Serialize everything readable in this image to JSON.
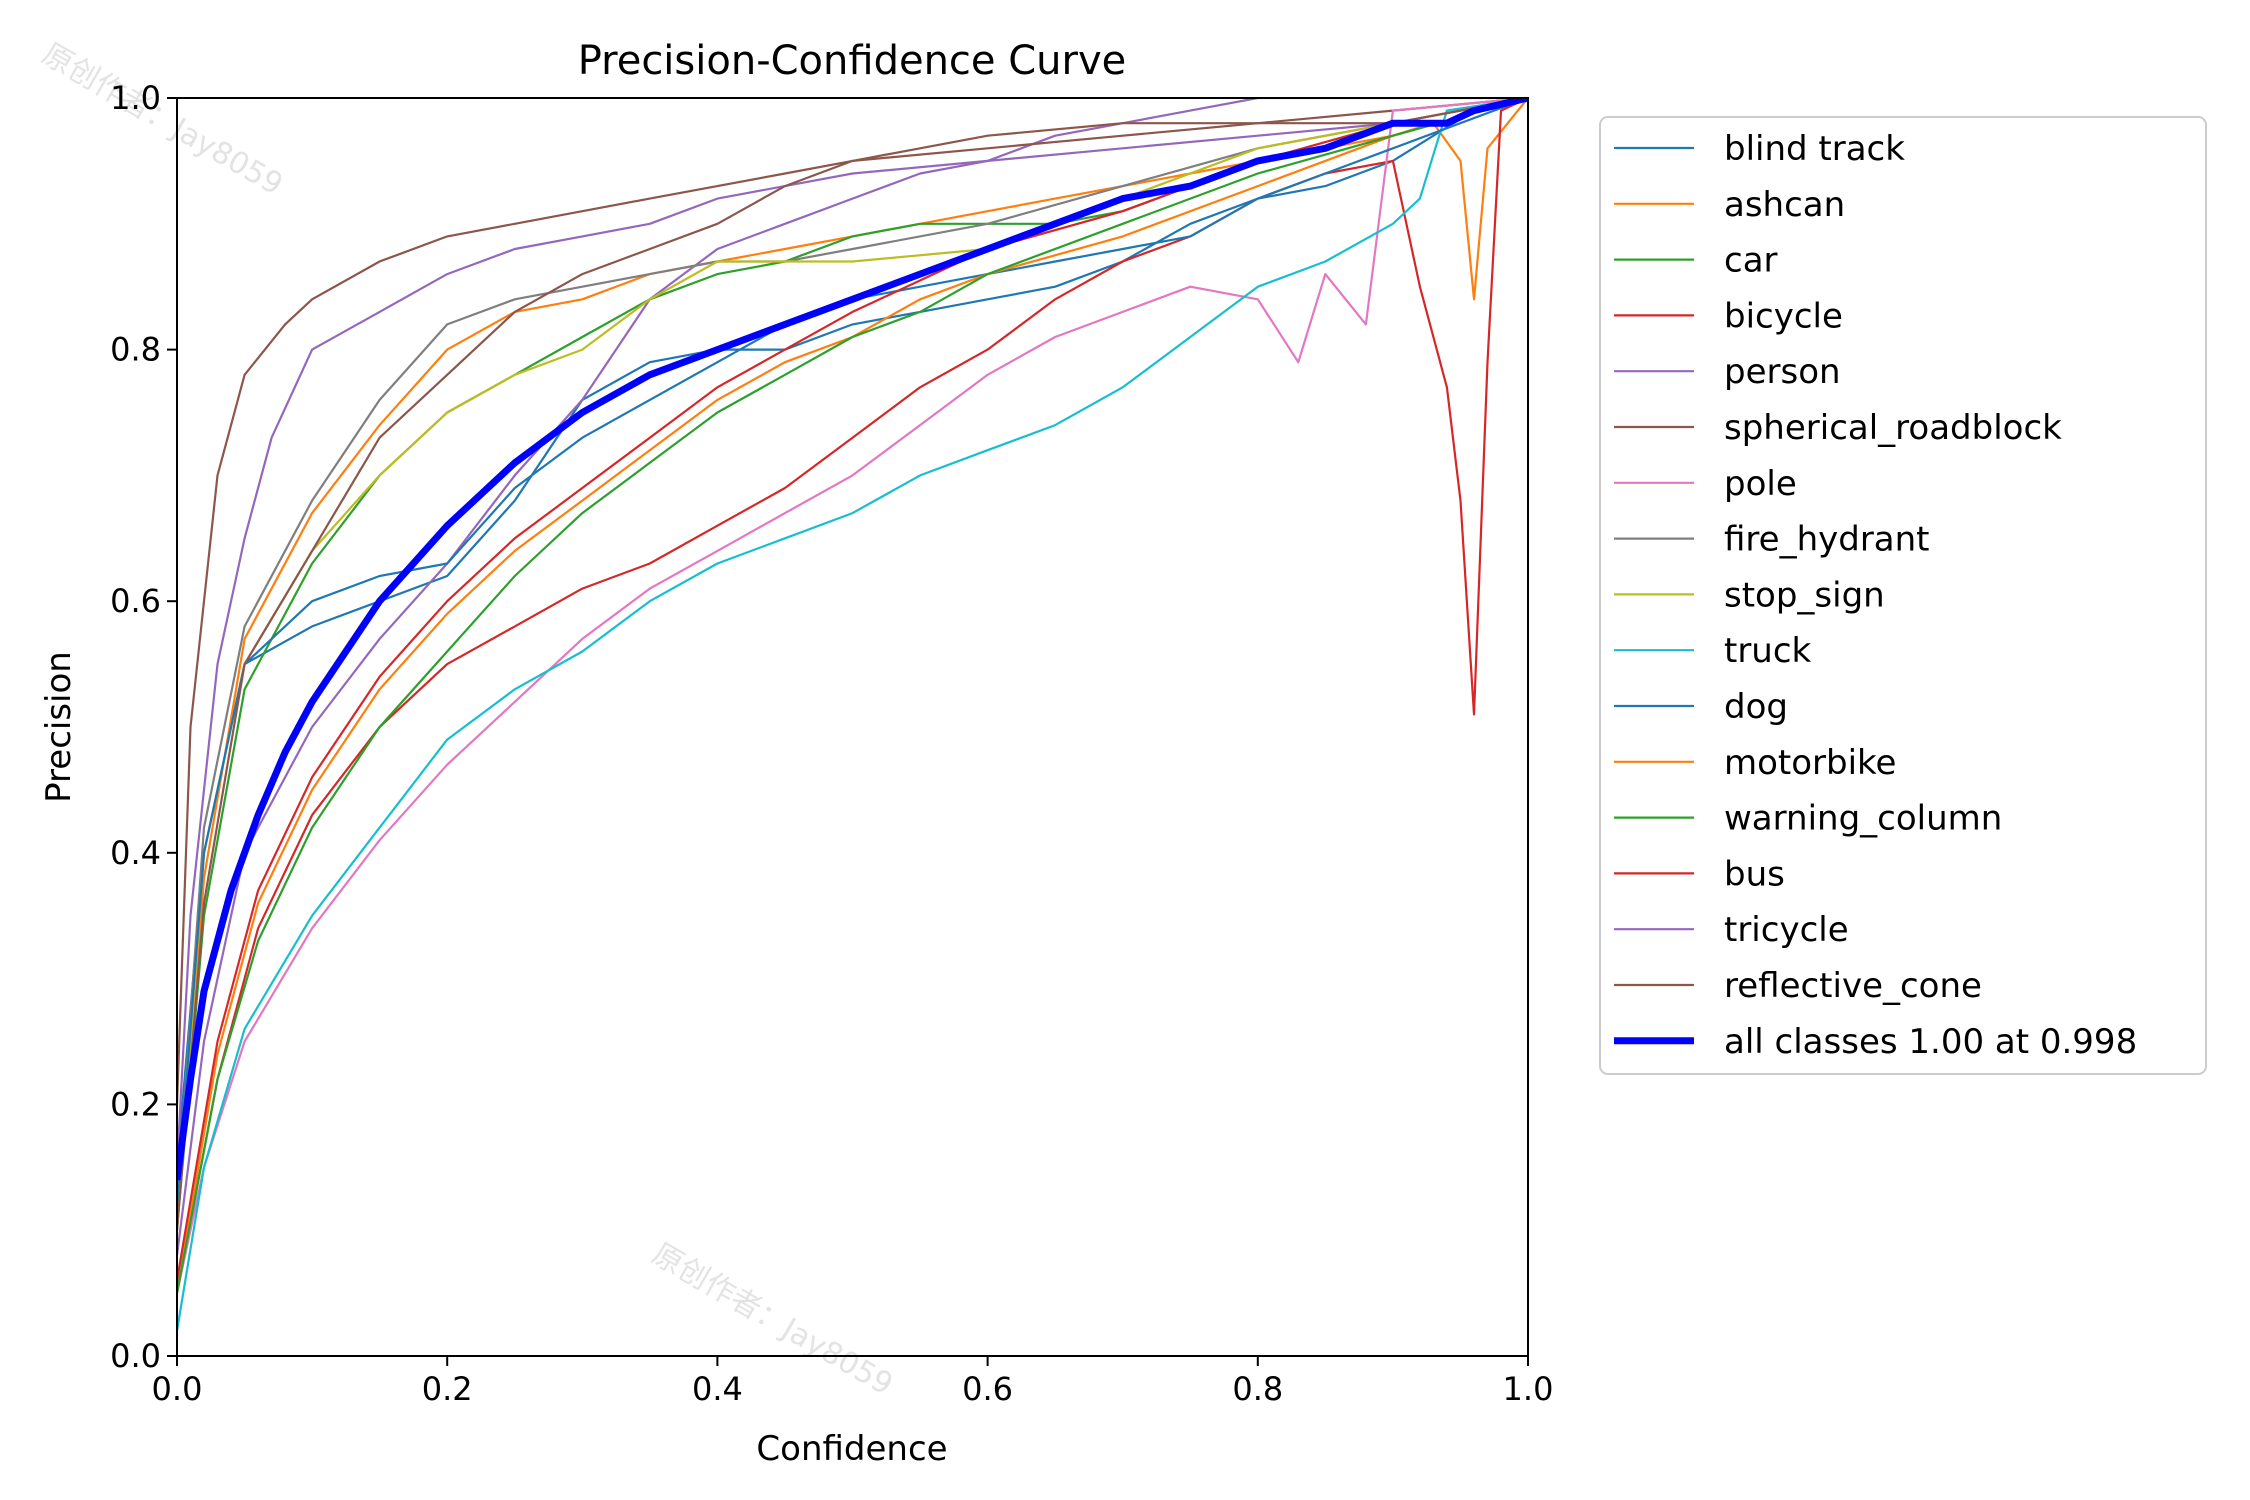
{
  "watermark": "原创作者：Jay8059",
  "chart_data": {
    "type": "line",
    "title": "Precision-Confidence Curve",
    "xlabel": "Confidence",
    "ylabel": "Precision",
    "xlim": [
      0.0,
      1.0
    ],
    "ylim": [
      0.0,
      1.0
    ],
    "xticks": [
      "0.0",
      "0.2",
      "0.4",
      "0.6",
      "0.8",
      "1.0"
    ],
    "yticks": [
      "0.0",
      "0.2",
      "0.4",
      "0.6",
      "0.8",
      "1.0"
    ],
    "grid": false,
    "legend_position": "outside-right",
    "series": [
      {
        "name": "blind track",
        "color": "#1f77b4",
        "width": 1,
        "x": [
          0.0,
          0.02,
          0.05,
          0.1,
          0.15,
          0.2,
          0.25,
          0.3,
          0.35,
          0.4,
          0.45,
          0.5,
          0.55,
          0.6,
          0.65,
          0.7,
          0.75,
          0.8,
          0.85,
          0.9,
          0.93,
          0.96,
          1.0
        ],
        "y": [
          0.15,
          0.4,
          0.55,
          0.58,
          0.6,
          0.62,
          0.68,
          0.76,
          0.79,
          0.8,
          0.8,
          0.82,
          0.83,
          0.84,
          0.85,
          0.87,
          0.9,
          0.92,
          0.93,
          0.95,
          0.97,
          0.99,
          1.0
        ]
      },
      {
        "name": "ashcan",
        "color": "#ff7f0e",
        "width": 1,
        "x": [
          0.0,
          0.02,
          0.05,
          0.1,
          0.15,
          0.2,
          0.25,
          0.3,
          0.35,
          0.4,
          0.45,
          0.5,
          0.55,
          0.6,
          0.65,
          0.7,
          0.75,
          0.8,
          0.85,
          0.9,
          0.93,
          0.95,
          0.96,
          0.97,
          1.0
        ],
        "y": [
          0.1,
          0.38,
          0.57,
          0.67,
          0.74,
          0.8,
          0.83,
          0.84,
          0.86,
          0.87,
          0.88,
          0.89,
          0.9,
          0.91,
          0.92,
          0.93,
          0.94,
          0.95,
          0.96,
          0.97,
          0.98,
          0.95,
          0.84,
          0.96,
          1.0
        ]
      },
      {
        "name": "car",
        "color": "#2ca02c",
        "width": 1,
        "x": [
          0.0,
          0.02,
          0.05,
          0.1,
          0.15,
          0.2,
          0.25,
          0.3,
          0.35,
          0.4,
          0.45,
          0.5,
          0.55,
          0.6,
          0.65,
          0.7,
          0.75,
          0.8,
          0.85,
          0.9,
          1.0
        ],
        "y": [
          0.1,
          0.35,
          0.53,
          0.63,
          0.7,
          0.75,
          0.78,
          0.81,
          0.84,
          0.86,
          0.87,
          0.89,
          0.9,
          0.9,
          0.9,
          0.91,
          0.93,
          0.95,
          0.96,
          0.98,
          1.0
        ]
      },
      {
        "name": "bicycle",
        "color": "#d62728",
        "width": 1,
        "x": [
          0.0,
          0.03,
          0.06,
          0.1,
          0.15,
          0.2,
          0.25,
          0.3,
          0.35,
          0.4,
          0.45,
          0.5,
          0.55,
          0.6,
          0.65,
          0.7,
          0.75,
          0.8,
          0.85,
          0.9,
          0.92,
          0.94,
          0.95,
          0.96,
          0.97,
          0.98,
          1.0
        ],
        "y": [
          0.05,
          0.22,
          0.34,
          0.43,
          0.5,
          0.55,
          0.58,
          0.61,
          0.63,
          0.66,
          0.69,
          0.73,
          0.77,
          0.8,
          0.84,
          0.87,
          0.89,
          0.92,
          0.94,
          0.95,
          0.85,
          0.77,
          0.68,
          0.51,
          0.79,
          0.99,
          1.0
        ]
      },
      {
        "name": "person",
        "color": "#9467bd",
        "width": 1,
        "x": [
          0.0,
          0.02,
          0.05,
          0.1,
          0.15,
          0.2,
          0.25,
          0.3,
          0.35,
          0.4,
          0.45,
          0.5,
          0.55,
          0.6,
          0.65,
          0.7,
          0.75,
          0.8,
          1.0
        ],
        "y": [
          0.08,
          0.25,
          0.4,
          0.5,
          0.57,
          0.63,
          0.7,
          0.76,
          0.84,
          0.88,
          0.9,
          0.92,
          0.94,
          0.95,
          0.97,
          0.98,
          0.99,
          1.0,
          1.0
        ]
      },
      {
        "name": "spherical_roadblock",
        "color": "#8c564b",
        "width": 1,
        "x": [
          0.0,
          0.01,
          0.03,
          0.05,
          0.08,
          0.1,
          0.15,
          0.2,
          0.25,
          0.3,
          0.35,
          0.4,
          0.45,
          0.5,
          0.55,
          0.6,
          0.7,
          0.8,
          0.9,
          1.0
        ],
        "y": [
          0.2,
          0.5,
          0.7,
          0.78,
          0.82,
          0.84,
          0.87,
          0.89,
          0.9,
          0.91,
          0.92,
          0.93,
          0.94,
          0.95,
          0.96,
          0.97,
          0.98,
          0.98,
          0.99,
          1.0
        ]
      },
      {
        "name": "pole",
        "color": "#e377c2",
        "width": 1,
        "x": [
          0.0,
          0.02,
          0.05,
          0.1,
          0.15,
          0.2,
          0.25,
          0.3,
          0.35,
          0.4,
          0.45,
          0.5,
          0.55,
          0.6,
          0.65,
          0.7,
          0.75,
          0.8,
          0.83,
          0.85,
          0.88,
          0.9,
          1.0
        ],
        "y": [
          0.05,
          0.15,
          0.25,
          0.34,
          0.41,
          0.47,
          0.52,
          0.57,
          0.61,
          0.64,
          0.67,
          0.7,
          0.74,
          0.78,
          0.81,
          0.83,
          0.85,
          0.84,
          0.79,
          0.86,
          0.82,
          0.99,
          1.0
        ]
      },
      {
        "name": "fire_hydrant",
        "color": "#7f7f7f",
        "width": 1,
        "x": [
          0.0,
          0.02,
          0.05,
          0.1,
          0.15,
          0.2,
          0.25,
          0.3,
          0.35,
          0.4,
          0.45,
          0.5,
          0.6,
          0.7,
          0.8,
          0.9,
          1.0
        ],
        "y": [
          0.12,
          0.42,
          0.58,
          0.68,
          0.76,
          0.82,
          0.84,
          0.85,
          0.86,
          0.87,
          0.87,
          0.88,
          0.9,
          0.93,
          0.96,
          0.98,
          1.0
        ]
      },
      {
        "name": "stop_sign",
        "color": "#bcbd22",
        "width": 1,
        "x": [
          0.0,
          0.02,
          0.05,
          0.1,
          0.15,
          0.2,
          0.25,
          0.3,
          0.35,
          0.4,
          0.45,
          0.5,
          0.6,
          0.7,
          0.8,
          0.9,
          1.0
        ],
        "y": [
          0.1,
          0.4,
          0.55,
          0.64,
          0.7,
          0.75,
          0.78,
          0.8,
          0.84,
          0.87,
          0.87,
          0.87,
          0.88,
          0.92,
          0.96,
          0.98,
          1.0
        ]
      },
      {
        "name": "truck",
        "color": "#17becf",
        "width": 1,
        "x": [
          0.0,
          0.02,
          0.05,
          0.1,
          0.15,
          0.2,
          0.25,
          0.3,
          0.35,
          0.4,
          0.45,
          0.5,
          0.55,
          0.6,
          0.65,
          0.7,
          0.75,
          0.8,
          0.85,
          0.9,
          0.92,
          0.94,
          1.0
        ],
        "y": [
          0.02,
          0.15,
          0.26,
          0.35,
          0.42,
          0.49,
          0.53,
          0.56,
          0.6,
          0.63,
          0.65,
          0.67,
          0.7,
          0.72,
          0.74,
          0.77,
          0.81,
          0.85,
          0.87,
          0.9,
          0.92,
          0.99,
          1.0
        ]
      },
      {
        "name": "dog",
        "color": "#1f77b4",
        "width": 1,
        "x": [
          0.0,
          0.02,
          0.05,
          0.1,
          0.15,
          0.2,
          0.25,
          0.3,
          0.35,
          0.4,
          0.45,
          0.5,
          0.55,
          0.6,
          0.65,
          0.7,
          0.75,
          0.8,
          0.85,
          0.9,
          1.0
        ],
        "y": [
          0.12,
          0.4,
          0.55,
          0.6,
          0.62,
          0.63,
          0.69,
          0.73,
          0.76,
          0.79,
          0.82,
          0.84,
          0.85,
          0.86,
          0.87,
          0.88,
          0.89,
          0.92,
          0.94,
          0.96,
          1.0
        ]
      },
      {
        "name": "motorbike",
        "color": "#ff7f0e",
        "width": 1,
        "x": [
          0.0,
          0.03,
          0.06,
          0.1,
          0.15,
          0.2,
          0.25,
          0.3,
          0.35,
          0.4,
          0.45,
          0.5,
          0.55,
          0.6,
          0.7,
          0.8,
          0.9,
          1.0
        ],
        "y": [
          0.05,
          0.24,
          0.36,
          0.45,
          0.53,
          0.59,
          0.64,
          0.68,
          0.72,
          0.76,
          0.79,
          0.81,
          0.84,
          0.86,
          0.89,
          0.93,
          0.97,
          1.0
        ]
      },
      {
        "name": "warning_column",
        "color": "#2ca02c",
        "width": 1,
        "x": [
          0.0,
          0.03,
          0.06,
          0.1,
          0.15,
          0.2,
          0.25,
          0.3,
          0.35,
          0.4,
          0.45,
          0.5,
          0.55,
          0.6,
          0.7,
          0.8,
          0.9,
          1.0
        ],
        "y": [
          0.05,
          0.22,
          0.33,
          0.42,
          0.5,
          0.56,
          0.62,
          0.67,
          0.71,
          0.75,
          0.78,
          0.81,
          0.83,
          0.86,
          0.9,
          0.94,
          0.97,
          1.0
        ]
      },
      {
        "name": "bus",
        "color": "#d62728",
        "width": 1,
        "x": [
          0.0,
          0.03,
          0.06,
          0.1,
          0.15,
          0.2,
          0.25,
          0.3,
          0.35,
          0.4,
          0.45,
          0.5,
          0.6,
          0.7,
          0.8,
          0.9,
          1.0
        ],
        "y": [
          0.06,
          0.25,
          0.37,
          0.46,
          0.54,
          0.6,
          0.65,
          0.69,
          0.73,
          0.77,
          0.8,
          0.83,
          0.88,
          0.91,
          0.95,
          0.98,
          1.0
        ]
      },
      {
        "name": "tricycle",
        "color": "#9467bd",
        "width": 1,
        "x": [
          0.0,
          0.01,
          0.03,
          0.05,
          0.07,
          0.1,
          0.15,
          0.2,
          0.25,
          0.3,
          0.35,
          0.4,
          0.5,
          0.6,
          0.7,
          0.8,
          0.9,
          1.0
        ],
        "y": [
          0.15,
          0.35,
          0.55,
          0.65,
          0.73,
          0.8,
          0.83,
          0.86,
          0.88,
          0.89,
          0.9,
          0.92,
          0.94,
          0.95,
          0.96,
          0.97,
          0.98,
          1.0
        ]
      },
      {
        "name": "reflective_cone",
        "color": "#8c564b",
        "width": 1,
        "x": [
          0.0,
          0.02,
          0.05,
          0.1,
          0.15,
          0.2,
          0.25,
          0.3,
          0.35,
          0.4,
          0.45,
          0.5,
          0.6,
          0.7,
          0.8,
          0.9,
          1.0
        ],
        "y": [
          0.1,
          0.36,
          0.55,
          0.64,
          0.73,
          0.78,
          0.83,
          0.86,
          0.88,
          0.9,
          0.93,
          0.95,
          0.96,
          0.97,
          0.98,
          0.98,
          1.0
        ]
      },
      {
        "name": "all classes 1.00 at 0.998",
        "color": "#0000ff",
        "width": 5,
        "x": [
          0.0,
          0.01,
          0.02,
          0.04,
          0.06,
          0.08,
          0.1,
          0.15,
          0.2,
          0.25,
          0.3,
          0.35,
          0.4,
          0.45,
          0.5,
          0.55,
          0.6,
          0.65,
          0.7,
          0.75,
          0.8,
          0.85,
          0.9,
          0.93,
          0.94,
          0.96,
          1.0
        ],
        "y": [
          0.14,
          0.22,
          0.29,
          0.37,
          0.43,
          0.48,
          0.52,
          0.6,
          0.66,
          0.71,
          0.75,
          0.78,
          0.8,
          0.82,
          0.84,
          0.86,
          0.88,
          0.9,
          0.92,
          0.93,
          0.95,
          0.96,
          0.98,
          0.98,
          0.98,
          0.99,
          1.0
        ]
      }
    ]
  }
}
